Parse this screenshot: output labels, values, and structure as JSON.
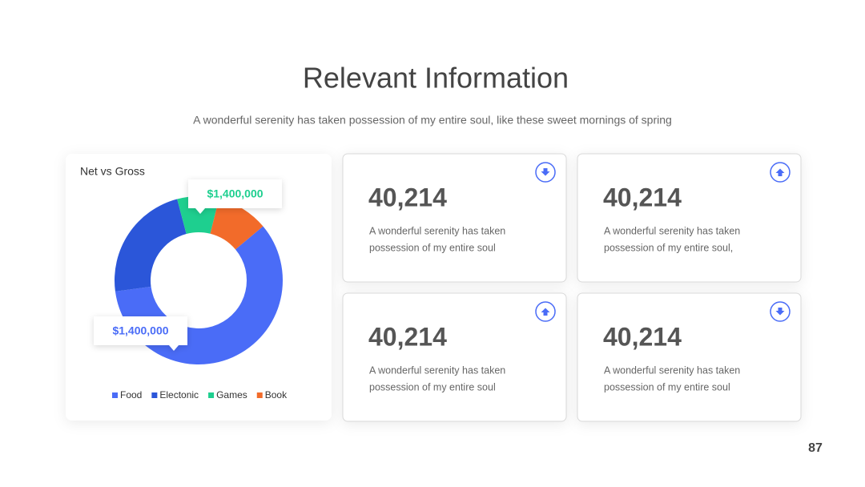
{
  "title": "Relevant Information",
  "subtitle": "A wonderful serenity has taken possession of my entire soul, like these sweet mornings of spring",
  "chart_data": {
    "type": "donut",
    "title": "Net vs Gross",
    "categories": [
      "Food",
      "Electonic",
      "Games",
      "Book"
    ],
    "values": [
      59,
      23,
      8,
      10
    ],
    "colors": [
      "#4a6cf7",
      "#2b56d9",
      "#1ecf8f",
      "#f26b2a"
    ],
    "annotations": [
      {
        "text": "$1,400,000",
        "color": "#1ecf8f"
      },
      {
        "text": "$1,400,000",
        "color": "#4a6cf7"
      }
    ]
  },
  "cards": [
    {
      "value": "40,214",
      "lines": [
        "A wonderful serenity has taken",
        "possession of my entire soul"
      ],
      "arrow": "down"
    },
    {
      "value": "40,214",
      "lines": [
        "A wonderful serenity has taken",
        "possession of my entire soul,"
      ],
      "arrow": "up"
    },
    {
      "value": "40,214",
      "lines": [
        "A wonderful serenity has taken",
        "possession of my entire soul"
      ],
      "arrow": "up"
    },
    {
      "value": "40,214",
      "lines": [
        "A wonderful serenity has taken",
        "possession of my entire soul"
      ],
      "arrow": "down"
    }
  ],
  "page_number": "87"
}
